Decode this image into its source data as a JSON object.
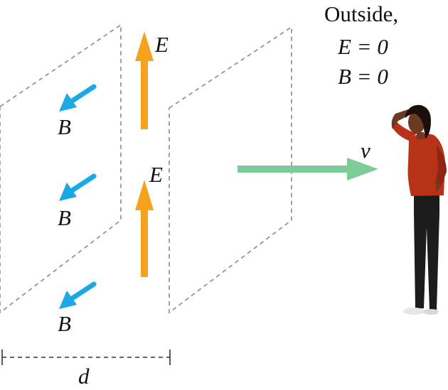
{
  "outside": {
    "heading": "Outside,",
    "e_line": "E = 0",
    "b_line": "B = 0"
  },
  "labels": {
    "e_field": "E",
    "b_field": "B",
    "velocity": "v",
    "distance": "d"
  },
  "colors": {
    "e_arrow": "#F7A21B",
    "b_arrow": "#1BA9E6",
    "v_arrow": "#7DCB96",
    "plane_dash": "#8a8a8a",
    "shirt": "#B83218",
    "pants": "#1c1c1c",
    "skin": "#6b3a22",
    "hair": "#1a0f0a"
  },
  "icons": {
    "observer": "person-shading-eyes-icon"
  }
}
